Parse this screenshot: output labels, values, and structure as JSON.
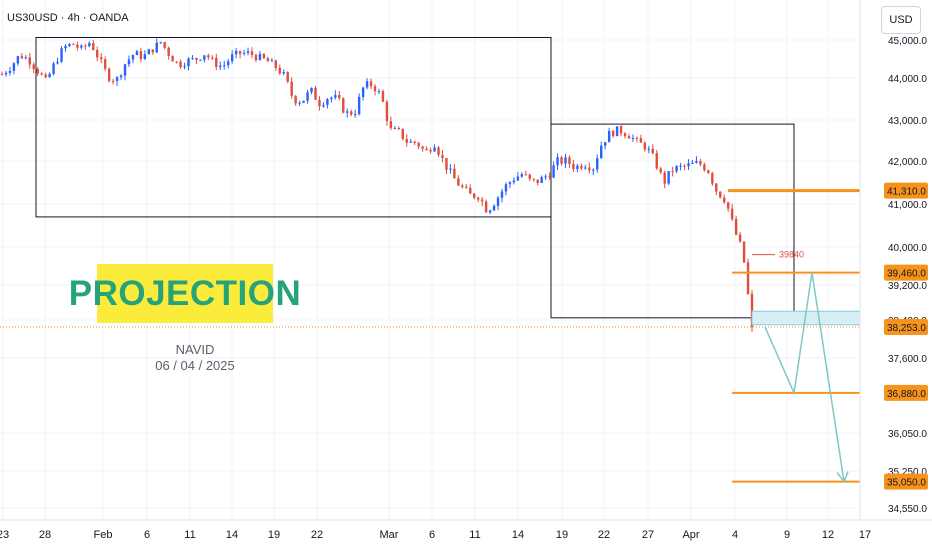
{
  "header": {
    "ticker": "US30USD · 4h · OANDA",
    "currency_button": "USD"
  },
  "annotation": {
    "projection_label": "PROJECTION",
    "author": "NAVID",
    "date": "06 / 04 / 2025"
  },
  "colors": {
    "up": "#2962ff",
    "down": "#e04e3c",
    "level": "#f7931a",
    "projection": "#7fc8c6",
    "label_bg": "#f7931a"
  },
  "chart_data": {
    "type": "candlestick",
    "instrument": "US30USD",
    "timeframe": "4h",
    "source": "OANDA",
    "currency": "USD",
    "x_tick_labels": [
      "23",
      "28",
      "Feb",
      "6",
      "11",
      "14",
      "19",
      "22",
      "Mar",
      "6",
      "11",
      "14",
      "19",
      "22",
      "27",
      "Apr",
      "4",
      "9",
      "12",
      "17"
    ],
    "y_tick_labels": [
      "45,000.0",
      "44,000.0",
      "43,000.0",
      "42,000.0",
      "41,000.0",
      "40,000.0",
      "39,200.0",
      "38,400.0",
      "37,600.0",
      "36,050.0",
      "35,250.0",
      "34,550.0"
    ],
    "y_tick_values": [
      45000,
      44000,
      43000,
      42000,
      41000,
      40000,
      39200,
      38400,
      37600,
      36050,
      35250,
      34550
    ],
    "level_labels": [
      "41,310.0",
      "39,460.0",
      "38,253.0",
      "36,880.0",
      "35,050.0"
    ],
    "level_values": [
      41310,
      39460,
      38253,
      36880,
      35050
    ],
    "annotation_value": "39840",
    "close_price": 38253,
    "range_boxes": [
      {
        "from_label": "Jan 28",
        "to_label": "Mar 19",
        "low": 40700,
        "high": 45050
      },
      {
        "from_label": "Mar 19",
        "to_label": "Apr 9",
        "low": 38450,
        "high": 42900
      }
    ],
    "price_path": [
      [
        44100,
        44300,
        44600,
        44500,
        44200,
        43900,
        44400,
        44800,
        44900,
        44750,
        44950,
        44500,
        44050,
        43950,
        44400,
        44650
      ],
      [
        44550,
        44750,
        44950,
        44600,
        44350,
        44450,
        44500,
        44650,
        44400,
        44300,
        44550,
        44650,
        44650,
        44550,
        44450,
        44300
      ],
      [
        44050,
        43500,
        43450,
        43700,
        43400,
        43550,
        43500,
        43150,
        43200,
        43800,
        43850,
        43550,
        42750,
        42700,
        42450,
        42450
      ],
      [
        42200,
        42450,
        42000,
        41650,
        41400,
        41200,
        41200,
        40850,
        41100,
        41400,
        41600,
        41700,
        41500,
        41550,
        41700,
        42000
      ],
      [
        42000,
        41850,
        41950,
        41850,
        42450,
        42700,
        42750,
        42650,
        42450,
        42350,
        42000,
        41500,
        41800,
        41850,
        41900,
        41950
      ],
      [
        41800,
        41300,
        41100,
        40400,
        39840,
        38253
      ]
    ],
    "projection_path": [
      {
        "label": "start",
        "value": 38253
      },
      {
        "label": "Apr 9",
        "value": 36880
      },
      {
        "label": "Apr 11",
        "value": 39460
      },
      {
        "label": "Apr 14",
        "value": 35050
      }
    ]
  }
}
